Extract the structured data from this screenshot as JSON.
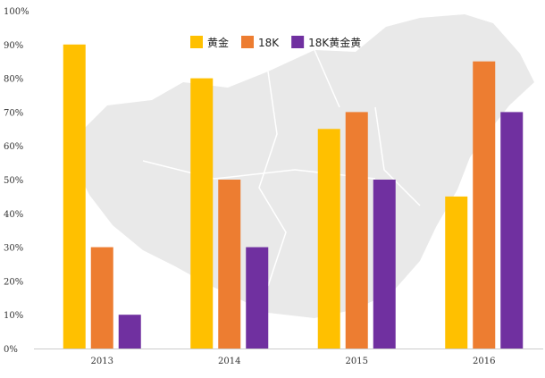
{
  "chart_data": {
    "type": "bar",
    "categories": [
      "2013",
      "2014",
      "2015",
      "2016"
    ],
    "series": [
      {
        "name": "黄金",
        "values": [
          90,
          80,
          65,
          45
        ],
        "color": "#FFC000"
      },
      {
        "name": "18K",
        "values": [
          30,
          50,
          70,
          85
        ],
        "color": "#ED7D31"
      },
      {
        "name": "18K黄金黄",
        "values": [
          10,
          30,
          50,
          70
        ],
        "color": "#7030A0"
      }
    ],
    "ylim": [
      0,
      100
    ],
    "yticks": [
      "0%",
      "10%",
      "20%",
      "30%",
      "40%",
      "50%",
      "60%",
      "70%",
      "80%",
      "90%",
      "100%"
    ],
    "legend_position": "top",
    "grid": false,
    "background_image": "china-map"
  }
}
